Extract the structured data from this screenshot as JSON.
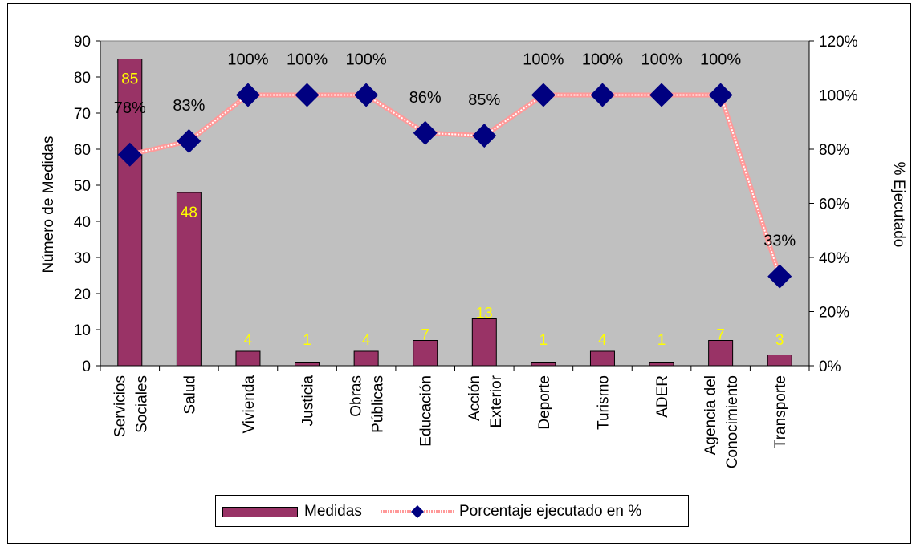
{
  "chart_data": {
    "type": "bar",
    "categories": [
      [
        "Servicios",
        "Sociales"
      ],
      [
        "Salud"
      ],
      [
        "Vivienda"
      ],
      [
        "Justicia"
      ],
      [
        "Obras",
        "Públicas"
      ],
      [
        "Educación"
      ],
      [
        "Acción",
        "Exterior"
      ],
      [
        "Deporte"
      ],
      [
        "Turismo"
      ],
      [
        "ADER"
      ],
      [
        "Agencia del",
        "Conocimiento"
      ],
      [
        "Transporte"
      ]
    ],
    "series": [
      {
        "name": "Medidas",
        "type": "bar",
        "axis": "left",
        "color": "#993366",
        "values": [
          85,
          48,
          4,
          1,
          4,
          7,
          13,
          1,
          4,
          1,
          7,
          3
        ],
        "labels": [
          "85",
          "48",
          "4",
          "1",
          "4",
          "7",
          "13",
          "1",
          "4",
          "1",
          "7",
          "3"
        ]
      },
      {
        "name": "Porcentaje ejecutado en %",
        "type": "line",
        "axis": "right",
        "color": "#000080",
        "line_color": "#ff9999",
        "values": [
          78,
          83,
          100,
          100,
          100,
          86,
          85,
          100,
          100,
          100,
          100,
          33
        ],
        "labels": [
          "78%",
          "83%",
          "100%",
          "100%",
          "100%",
          "86%",
          "85%",
          "100%",
          "100%",
          "100%",
          "100%",
          "33%"
        ]
      }
    ],
    "ylabel": "Número de Medidas",
    "y2label": "% Ejecutado",
    "ylim": [
      0,
      90
    ],
    "y2lim": [
      0,
      120
    ],
    "yticks": [
      "0",
      "10",
      "20",
      "30",
      "40",
      "50",
      "60",
      "70",
      "80",
      "90"
    ],
    "y2ticks": [
      "0%",
      "20%",
      "40%",
      "60%",
      "80%",
      "100%",
      "120%"
    ],
    "plot_background": "#c0c0c0",
    "grid": false,
    "legend_position": "bottom"
  }
}
